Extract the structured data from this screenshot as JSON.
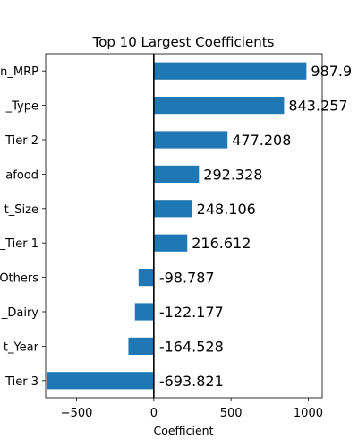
{
  "chart_data": {
    "type": "bar",
    "orientation": "horizontal",
    "title": "Top 10 Largest Coefficients",
    "xlabel": "Coefficient",
    "ylabel": "",
    "categories": [
      "n_MRP",
      "_Type",
      "Tier 2",
      "afood",
      "t_Size",
      "_Tier 1",
      "Others",
      "_Dairy",
      "t_Year",
      "Tier 3"
    ],
    "values": [
      987.9,
      843.257,
      477.208,
      292.328,
      248.106,
      216.612,
      -98.787,
      -122.177,
      -164.528,
      -693.821
    ],
    "value_labels": [
      "987.9",
      "843.257",
      "477.208",
      "292.328",
      "248.106",
      "216.612",
      "-98.787",
      "-122.177",
      "-164.528",
      "-693.821"
    ],
    "xlim": [
      -700,
      1090
    ],
    "xticks": [
      -500,
      0,
      500,
      1000
    ],
    "xtick_labels": [
      "−500",
      "0",
      "500",
      "1000"
    ],
    "zero_line": true,
    "grid": false,
    "bar_color": "#1f77b4"
  }
}
